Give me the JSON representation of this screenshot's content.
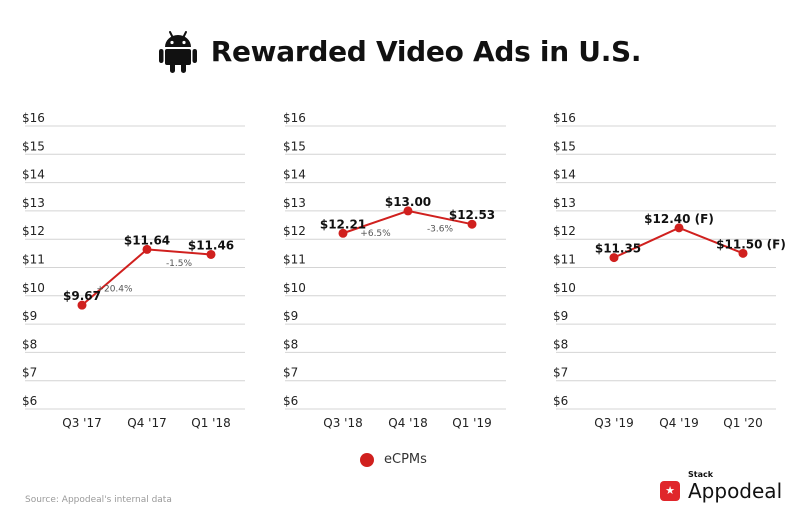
{
  "header": {
    "title": "Rewarded Video Ads in U.S.",
    "icon": "android-icon"
  },
  "chart_data": [
    {
      "type": "line",
      "categories": [
        "Q3 '17",
        "Q4 '17",
        "Q1 '18"
      ],
      "series": [
        {
          "name": "eCPMs",
          "values": [
            9.67,
            11.64,
            11.46
          ]
        }
      ],
      "value_labels": [
        "$9.67",
        "$11.64",
        "$11.46"
      ],
      "change_labels": [
        "+20.4%",
        "-1.5%"
      ],
      "yticks": [
        "$16",
        "$15",
        "$14",
        "$13",
        "$12",
        "$11",
        "$10",
        "$9",
        "$8",
        "$7",
        "$6"
      ],
      "ylim": [
        6,
        16
      ]
    },
    {
      "type": "line",
      "categories": [
        "Q3 '18",
        "Q4 '18",
        "Q1 '19"
      ],
      "series": [
        {
          "name": "eCPMs",
          "values": [
            12.21,
            13.0,
            12.53
          ]
        }
      ],
      "value_labels": [
        "$12.21",
        "$13.00",
        "$12.53"
      ],
      "change_labels": [
        "+6.5%",
        "-3.6%"
      ],
      "yticks": [
        "$16",
        "$15",
        "$14",
        "$13",
        "$12",
        "$11",
        "$10",
        "$9",
        "$8",
        "$7",
        "$6"
      ],
      "ylim": [
        6,
        16
      ]
    },
    {
      "type": "line",
      "categories": [
        "Q3 '19",
        "Q4 '19",
        "Q1 '20"
      ],
      "series": [
        {
          "name": "eCPMs",
          "values": [
            11.35,
            12.4,
            11.5
          ]
        }
      ],
      "value_labels": [
        "$11.35",
        "$12.40 (F)",
        "$11.50 (F)"
      ],
      "change_labels": [],
      "yticks": [
        "$16",
        "$15",
        "$14",
        "$13",
        "$12",
        "$11",
        "$10",
        "$9",
        "$8",
        "$7",
        "$6"
      ],
      "ylim": [
        6,
        16
      ]
    }
  ],
  "legend": {
    "label": "eCPMs",
    "color": "#d0201e"
  },
  "line_color": "#d0201e",
  "source": "Source: Appodeal's internal data",
  "brand": {
    "stack": "Stack",
    "name": "Appodeal",
    "logo_icon": "star-icon"
  }
}
